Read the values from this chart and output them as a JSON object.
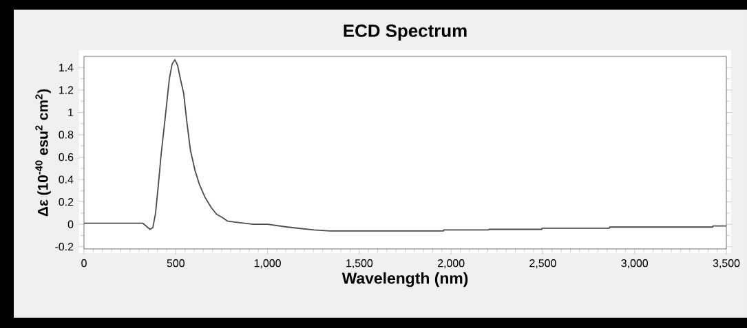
{
  "chart_data": {
    "type": "line",
    "title": "ECD Spectrum",
    "xlabel": "Wavelength (nm)",
    "ylabel": "Δε (10$^{-40}$ esu$^{2}$ cm$^{2}$)",
    "x": [
      0,
      320,
      345,
      360,
      375,
      390,
      405,
      420,
      443,
      465,
      480,
      495,
      510,
      525,
      543,
      560,
      580,
      605,
      630,
      660,
      693,
      722,
      755,
      780,
      818,
      922,
      1000,
      1110,
      1253,
      1340,
      1958,
      1960,
      2205,
      2207,
      2494,
      2496,
      2862,
      2864,
      3425,
      3427,
      3500
    ],
    "values": [
      0.01,
      0.01,
      -0.025,
      -0.045,
      -0.03,
      0.1,
      0.35,
      0.62,
      0.96,
      1.3,
      1.43,
      1.47,
      1.42,
      1.3,
      1.17,
      0.92,
      0.66,
      0.48,
      0.35,
      0.24,
      0.15,
      0.09,
      0.06,
      0.03,
      0.02,
      0.0,
      0.0,
      -0.025,
      -0.05,
      -0.06,
      -0.06,
      -0.05,
      -0.05,
      -0.045,
      -0.045,
      -0.035,
      -0.035,
      -0.025,
      -0.025,
      -0.015,
      -0.015
    ],
    "color": "#4a4a4a",
    "xlim": [
      0,
      3500
    ],
    "ylim": [
      -0.22,
      1.5
    ],
    "xticks": [
      0,
      500,
      {
        "value": 1000,
        "label": "1,000"
      },
      {
        "value": 1500,
        "label": "1,500"
      },
      {
        "value": 2000,
        "label": "2,000"
      },
      {
        "value": 2500,
        "label": "2,500"
      },
      {
        "value": 3000,
        "label": "3,000"
      },
      {
        "value": 3500,
        "label": "3,500"
      }
    ],
    "yticks": [
      -0.2,
      0,
      0.2,
      0.4,
      0.6,
      0.8,
      1,
      1.2,
      1.4
    ],
    "grid": false,
    "marker": "none",
    "line_style": "solid"
  }
}
